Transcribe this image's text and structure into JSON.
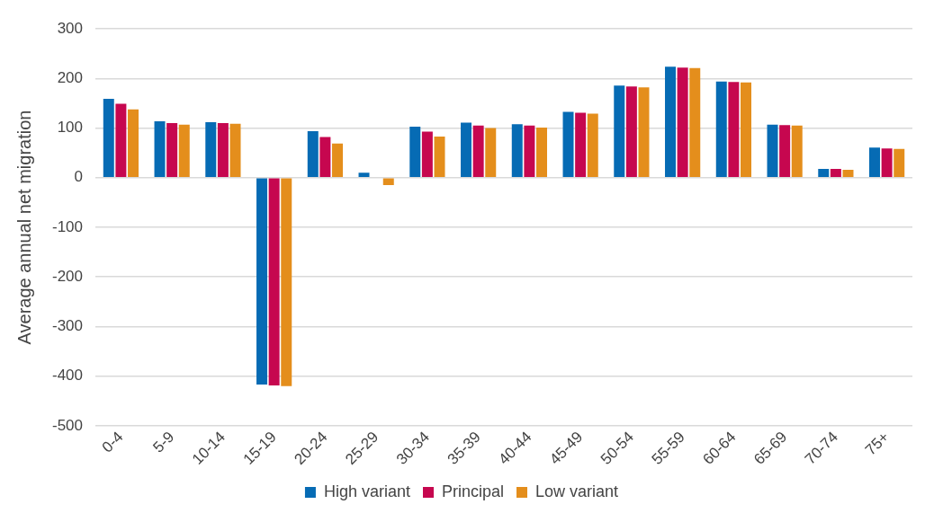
{
  "chart_data": {
    "type": "bar",
    "ylabel": "Average annual net migration",
    "categories": [
      "0-4",
      "5-9",
      "10-14",
      "15-19",
      "20-24",
      "25-29",
      "30-34",
      "35-39",
      "40-44",
      "45-49",
      "50-54",
      "55-59",
      "60-64",
      "65-69",
      "70-74",
      "75+"
    ],
    "series": [
      {
        "name": "High variant",
        "color": "#066bb4",
        "values": [
          159,
          114,
          112,
          -417,
          94,
          10,
          103,
          111,
          108,
          133,
          186,
          224,
          194,
          107,
          18,
          61
        ]
      },
      {
        "name": "Principal",
        "color": "#c6074f",
        "values": [
          149,
          110,
          110,
          -419,
          82,
          null,
          93,
          105,
          105,
          131,
          184,
          222,
          193,
          106,
          18,
          59
        ]
      },
      {
        "name": "Low variant",
        "color": "#e48e1c",
        "values": [
          138,
          107,
          109,
          -420,
          69,
          -15,
          83,
          100,
          101,
          129,
          182,
          221,
          192,
          105,
          16,
          58
        ]
      }
    ],
    "ylim": [
      -500,
      300
    ],
    "yticks": [
      -500,
      -400,
      -300,
      -200,
      -100,
      0,
      100,
      200,
      300
    ],
    "grid": "y",
    "legend": "bottom"
  }
}
